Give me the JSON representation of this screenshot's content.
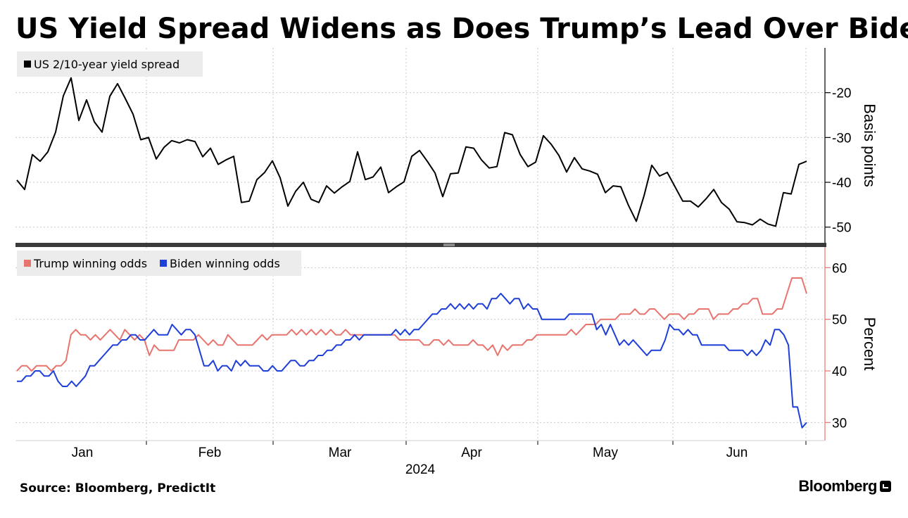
{
  "title": "US Yield Spread Widens as Does Trump’s Lead Over Biden",
  "source": "Source: Bloomberg, PredictIt",
  "brand": "Bloomberg",
  "chart_data": [
    {
      "type": "line",
      "series": [
        {
          "name": "US 2/10-year yield spread",
          "color": "#000000",
          "values": [
            -39.5,
            -41.6,
            -33.8,
            -35.3,
            -33.2,
            -28.8,
            -20.7,
            -16.7,
            -26.2,
            -21.6,
            -26.5,
            -28.8,
            -20.8,
            -18.0,
            -21.3,
            -24.8,
            -30.5,
            -30.0,
            -34.8,
            -32.2,
            -30.7,
            -31.2,
            -30.5,
            -30.9,
            -34.3,
            -32.4,
            -36.0,
            -35.0,
            -34.2,
            -44.5,
            -44.2,
            -39.4,
            -37.8,
            -35.2,
            -39.0,
            -45.3,
            -42.0,
            -40.0,
            -43.8,
            -44.5,
            -40.8,
            -42.4,
            -41.0,
            -39.8,
            -33.2,
            -39.4,
            -38.8,
            -36.6,
            -42.3,
            -41.0,
            -39.9,
            -34.2,
            -32.9,
            -35.3,
            -37.9,
            -43.2,
            -38.1,
            -37.9,
            -32.1,
            -32.4,
            -35.0,
            -36.8,
            -36.5,
            -28.9,
            -29.4,
            -33.8,
            -36.5,
            -35.5,
            -29.6,
            -31.5,
            -34.0,
            -37.7,
            -34.5,
            -37.0,
            -37.5,
            -38.2,
            -42.3,
            -40.8,
            -41.0,
            -45.2,
            -48.7,
            -43.0,
            -36.2,
            -38.6,
            -37.8,
            -41.0,
            -44.2,
            -44.2,
            -45.5,
            -43.7,
            -41.6,
            -44.5,
            -46.0,
            -48.8,
            -49.0,
            -49.5,
            -48.2,
            -49.3,
            -49.8,
            -42.3,
            -42.6,
            -36.0,
            -35.3
          ]
        }
      ],
      "x_range": [
        "2023-12-19",
        "2024-06-28"
      ],
      "ylabel": "Basis points",
      "yticks": [
        -20,
        -30,
        -40,
        -50
      ],
      "ylim": [
        -53.5,
        -10
      ],
      "grid": true,
      "legend_position": "top-left"
    },
    {
      "type": "line",
      "series": [
        {
          "name": "Trump winning odds",
          "color": "#e8746e",
          "values": [
            40,
            41,
            41,
            40,
            41,
            41,
            41,
            40,
            41,
            41,
            42,
            47,
            48,
            47,
            47,
            46,
            47,
            46,
            47,
            48,
            47,
            46,
            48,
            47,
            46,
            47,
            46,
            43,
            45,
            44,
            44,
            44,
            44,
            46,
            46,
            46,
            46,
            47,
            46,
            45,
            46,
            45,
            45,
            47,
            46,
            45,
            45,
            45,
            45,
            46,
            47,
            46,
            47,
            47,
            47,
            47,
            48,
            47,
            48,
            47,
            48,
            47,
            48,
            47,
            48,
            47,
            47,
            48,
            47,
            47,
            47,
            47,
            47,
            47,
            47,
            47,
            47,
            47,
            46,
            46,
            46,
            46,
            46,
            45,
            45,
            46,
            46,
            45,
            46,
            45,
            45,
            45,
            45,
            46,
            45,
            45,
            44,
            45,
            43,
            45,
            44,
            45,
            45,
            45,
            46,
            46,
            47,
            47,
            47,
            47,
            47,
            47,
            47,
            48,
            47,
            48,
            49,
            49,
            49,
            50,
            50,
            50,
            50,
            51,
            51,
            51,
            52,
            51,
            51,
            52,
            52,
            51,
            50,
            51,
            51,
            51,
            50,
            51,
            51,
            52,
            52,
            52,
            50,
            51,
            51,
            51,
            52,
            52,
            53,
            53,
            54,
            54,
            51,
            51,
            51,
            52,
            52,
            55,
            58,
            58,
            58,
            55
          ],
          "note": ""
        },
        {
          "name": "Biden winning odds",
          "color": "#1f3fd9",
          "values": [
            38,
            38,
            39,
            39,
            40,
            40,
            39,
            39,
            40,
            38,
            37,
            37,
            38,
            37,
            38,
            39,
            41,
            41,
            42,
            43,
            44,
            45,
            45,
            46,
            46,
            47,
            47,
            46,
            46,
            47,
            48,
            47,
            47,
            47,
            49,
            48,
            47,
            48,
            48,
            47,
            44,
            41,
            41,
            42,
            40,
            41,
            41,
            40,
            42,
            41,
            42,
            41,
            41,
            41,
            40,
            40,
            41,
            40,
            40,
            41,
            42,
            42,
            41,
            41,
            42,
            42,
            43,
            43,
            44,
            44,
            45,
            45,
            46,
            46,
            47,
            46,
            47,
            47,
            47,
            47,
            47,
            47,
            47,
            48,
            47,
            48,
            47,
            48,
            48,
            49,
            50,
            51,
            51,
            52,
            52,
            53,
            52,
            53,
            52,
            53,
            52,
            53,
            53,
            52,
            54,
            54,
            55,
            54,
            53,
            54,
            54,
            52,
            53,
            52,
            52,
            50,
            50,
            50,
            50,
            50,
            50,
            51,
            51,
            51,
            51,
            51,
            51,
            48,
            49,
            47,
            49,
            47,
            45,
            46,
            45,
            46,
            45,
            44,
            43,
            44,
            44,
            44,
            46,
            49,
            48,
            48,
            47,
            48,
            47,
            47,
            45,
            45,
            45,
            45,
            45,
            45,
            44,
            44,
            44,
            44,
            43,
            44,
            43,
            44,
            46,
            45,
            48,
            48,
            47,
            45,
            33,
            33,
            29,
            30
          ]
        }
      ],
      "x_range": [
        "2023-12-19",
        "2024-06-28"
      ],
      "xticks": [
        "Jan",
        "Feb",
        "Mar",
        "Apr",
        "May",
        "Jun"
      ],
      "xlabel": "2024",
      "ylabel": "Percent",
      "yticks": [
        60,
        50,
        40,
        30
      ],
      "ylim": [
        26.5,
        64
      ],
      "grid": true,
      "legend_position": "top-left"
    }
  ]
}
